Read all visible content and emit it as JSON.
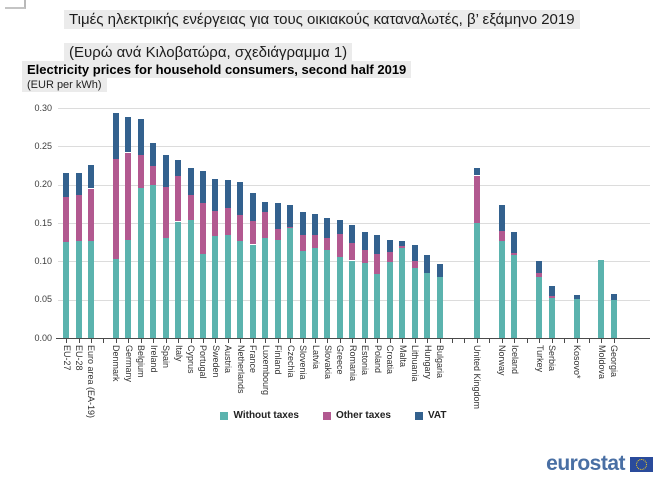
{
  "header": {
    "title_greek": "Τιμές ηλεκτρικής ενέργειας για τους οικιακούς καταναλωτές, β’ εξάμηνο 2019",
    "subtitle_greek": "(Ευρώ ανά Κιλοβατώρα, σχεδιάγραμμα 1)",
    "title_english": "Electricity prices for household consumers, second half 2019",
    "unit_label": "(EUR per kWh)"
  },
  "footer": {
    "brand": "eurostat"
  },
  "colors": {
    "without_taxes": "#5bb3ae",
    "other_taxes": "#b25990",
    "vat": "#33618e",
    "grid": "#dcdcdc",
    "axis": "#4a4a4a",
    "brand_blue": "#496fa4",
    "flag_blue": "#2a4b9b",
    "flag_stars": "#ffd617",
    "title_highlight": "#ebebeb"
  },
  "chart_data": {
    "type": "bar",
    "stacked": true,
    "title": "Electricity prices for household consumers, second half 2019",
    "ylabel": "EUR per kWh",
    "xlabel": "",
    "ylim": [
      0,
      0.3
    ],
    "ytick_step": 0.05,
    "ytick_labels": [
      "0.00",
      "0.05",
      "0.10",
      "0.15",
      "0.20",
      "0.25",
      "0.30"
    ],
    "grid": true,
    "legend_position": "bottom-center",
    "legend": [
      {
        "key": "without_taxes",
        "label": "Without taxes"
      },
      {
        "key": "other_taxes",
        "label": "Other taxes"
      },
      {
        "key": "vat",
        "label": "VAT"
      }
    ],
    "bars": [
      {
        "label": "EU-27",
        "slot": 0,
        "without_taxes": 0.125,
        "other_taxes": 0.059,
        "vat": 0.031
      },
      {
        "label": "EU-28",
        "slot": 1,
        "without_taxes": 0.126,
        "other_taxes": 0.06,
        "vat": 0.029
      },
      {
        "label": "Euro area (EA-19)",
        "slot": 2,
        "without_taxes": 0.127,
        "other_taxes": 0.068,
        "vat": 0.031
      },
      {
        "label": "Denmark",
        "slot": 4,
        "without_taxes": 0.103,
        "other_taxes": 0.131,
        "vat": 0.059
      },
      {
        "label": "Germany",
        "slot": 5,
        "without_taxes": 0.128,
        "other_taxes": 0.114,
        "vat": 0.046
      },
      {
        "label": "Belgium",
        "slot": 6,
        "without_taxes": 0.196,
        "other_taxes": 0.043,
        "vat": 0.047
      },
      {
        "label": "Ireland",
        "slot": 7,
        "without_taxes": 0.199,
        "other_taxes": 0.026,
        "vat": 0.03
      },
      {
        "label": "Spain",
        "slot": 8,
        "without_taxes": 0.131,
        "other_taxes": 0.066,
        "vat": 0.042
      },
      {
        "label": "Italy",
        "slot": 9,
        "without_taxes": 0.152,
        "other_taxes": 0.059,
        "vat": 0.021
      },
      {
        "label": "Cyprus",
        "slot": 10,
        "without_taxes": 0.154,
        "other_taxes": 0.033,
        "vat": 0.035
      },
      {
        "label": "Portugal",
        "slot": 11,
        "without_taxes": 0.109,
        "other_taxes": 0.067,
        "vat": 0.042
      },
      {
        "label": "Sweden",
        "slot": 12,
        "without_taxes": 0.133,
        "other_taxes": 0.033,
        "vat": 0.041
      },
      {
        "label": "Austria",
        "slot": 13,
        "without_taxes": 0.134,
        "other_taxes": 0.035,
        "vat": 0.037
      },
      {
        "label": "Netherlands",
        "slot": 14,
        "without_taxes": 0.126,
        "other_taxes": 0.035,
        "vat": 0.042
      },
      {
        "label": "France",
        "slot": 15,
        "without_taxes": 0.122,
        "other_taxes": 0.031,
        "vat": 0.036
      },
      {
        "label": "Luxembourg",
        "slot": 16,
        "without_taxes": 0.13,
        "other_taxes": 0.035,
        "vat": 0.013
      },
      {
        "label": "Finland",
        "slot": 17,
        "without_taxes": 0.128,
        "other_taxes": 0.014,
        "vat": 0.034
      },
      {
        "label": "Czechia",
        "slot": 18,
        "without_taxes": 0.143,
        "other_taxes": 0.002,
        "vat": 0.029
      },
      {
        "label": "Slovenia",
        "slot": 19,
        "without_taxes": 0.113,
        "other_taxes": 0.022,
        "vat": 0.03
      },
      {
        "label": "Latvia",
        "slot": 20,
        "without_taxes": 0.117,
        "other_taxes": 0.017,
        "vat": 0.028
      },
      {
        "label": "Slovakia",
        "slot": 21,
        "without_taxes": 0.1145,
        "other_taxes": 0.016,
        "vat": 0.026
      },
      {
        "label": "Greece",
        "slot": 22,
        "without_taxes": 0.106,
        "other_taxes": 0.03,
        "vat": 0.018
      },
      {
        "label": "Romania",
        "slot": 23,
        "without_taxes": 0.101,
        "other_taxes": 0.023,
        "vat": 0.023
      },
      {
        "label": "Estonia",
        "slot": 24,
        "without_taxes": 0.098,
        "other_taxes": 0.017,
        "vat": 0.023
      },
      {
        "label": "Poland",
        "slot": 25,
        "without_taxes": 0.083,
        "other_taxes": 0.026,
        "vat": 0.025
      },
      {
        "label": "Croatia",
        "slot": 26,
        "without_taxes": 0.099,
        "other_taxes": 0.013,
        "vat": 0.016
      },
      {
        "label": "Malta",
        "slot": 27,
        "without_taxes": 0.118,
        "other_taxes": 0.002,
        "vat": 0.006
      },
      {
        "label": "Lithuania",
        "slot": 28,
        "without_taxes": 0.091,
        "other_taxes": 0.01,
        "vat": 0.021
      },
      {
        "label": "Hungary",
        "slot": 29,
        "without_taxes": 0.085,
        "other_taxes": 0.0,
        "vat": 0.023
      },
      {
        "label": "Bulgaria",
        "slot": 30,
        "without_taxes": 0.08,
        "other_taxes": 0.0,
        "vat": 0.016
      },
      {
        "label": "United Kingdom",
        "slot": 33,
        "without_taxes": 0.15,
        "other_taxes": 0.062,
        "vat": 0.01
      },
      {
        "label": "Norway",
        "slot": 35,
        "without_taxes": 0.126,
        "other_taxes": 0.013,
        "vat": 0.034
      },
      {
        "label": "Iceland",
        "slot": 36,
        "without_taxes": 0.108,
        "other_taxes": 0.003,
        "vat": 0.027
      },
      {
        "label": "Turkey",
        "slot": 38,
        "without_taxes": 0.079,
        "other_taxes": 0.006,
        "vat": 0.015
      },
      {
        "label": "Serbia",
        "slot": 39,
        "without_taxes": 0.052,
        "other_taxes": 0.003,
        "vat": 0.013
      },
      {
        "label": "Kosovo*",
        "slot": 41,
        "without_taxes": 0.0505,
        "other_taxes": 0.0,
        "vat": 0.006
      },
      {
        "label": "Moldova",
        "slot": 43,
        "without_taxes": 0.102,
        "other_taxes": 0.0,
        "vat": 0.0
      },
      {
        "label": "Georgia",
        "slot": 44,
        "without_taxes": 0.049,
        "other_taxes": 0.0,
        "vat": 0.009
      }
    ]
  }
}
